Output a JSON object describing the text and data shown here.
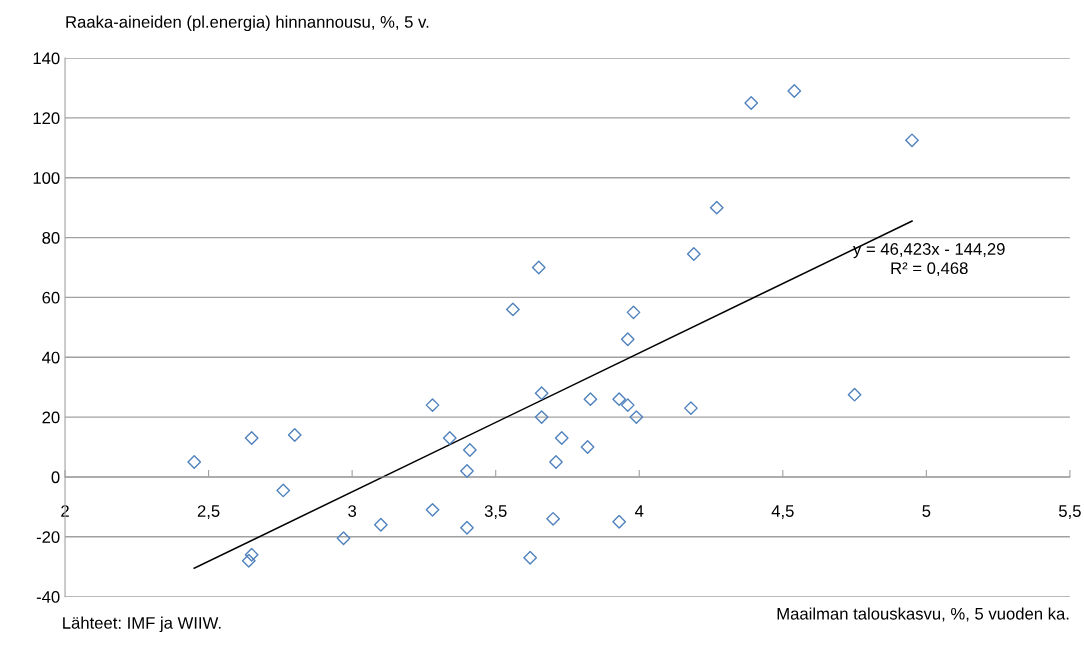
{
  "chart_data": {
    "type": "scatter",
    "ylabel": "Raaka-aineiden (pl.energia) hinnannousu, %, 5 v.",
    "xlabel": "Maailman talouskasvu, %, 5 vuoden ka.",
    "annotations": [
      "y = 46,423x - 144,29\nR² = 0,468",
      "Lähteet: IMF ja WIIW."
    ],
    "series": [
      {
        "color": "#4f81bd",
        "marker": "diamond",
        "x": [
          2.45,
          2.65,
          2.8,
          2.76,
          2.64,
          2.65,
          2.97,
          3.1,
          3.28,
          3.28,
          3.34,
          3.41,
          3.4,
          3.4,
          3.56,
          3.65,
          3.98,
          3.96,
          3.66,
          3.66,
          3.83,
          3.93,
          3.96,
          3.99,
          4.18,
          3.73,
          3.82,
          3.71,
          3.7,
          3.93,
          3.62,
          4.19,
          4.39,
          4.54,
          4.95,
          4.27,
          4.75
        ],
        "values": [
          5,
          13,
          14,
          -4.5,
          -28,
          -26,
          -20.5,
          -16,
          24,
          -11,
          13,
          9,
          2,
          -17,
          56,
          70,
          55,
          46,
          28,
          20,
          26,
          26,
          24,
          20,
          23,
          13,
          10,
          5,
          -14,
          -15,
          -27,
          74.5,
          125,
          129,
          112.5,
          90,
          27.5
        ]
      },
      {
        "type": "line",
        "color": "#000000",
        "marker": "none",
        "line_style": "solid",
        "x": [
          2.45,
          4.95
        ],
        "values": [
          -30.5,
          85.5
        ]
      }
    ],
    "xlim": [
      2,
      5.5
    ],
    "xticks": [
      2,
      {
        "value": 2.5,
        "label": "2,5"
      },
      3,
      {
        "value": 3.5,
        "label": "3,5"
      },
      4,
      {
        "value": 4.5,
        "label": "4,5"
      },
      5,
      {
        "value": 5.5,
        "label": "5,5"
      }
    ],
    "ylim": [
      -40,
      140
    ],
    "yticks": [
      -40,
      -20,
      0,
      20,
      40,
      60,
      80,
      100,
      120,
      140
    ],
    "grid": "y",
    "legend": false
  }
}
